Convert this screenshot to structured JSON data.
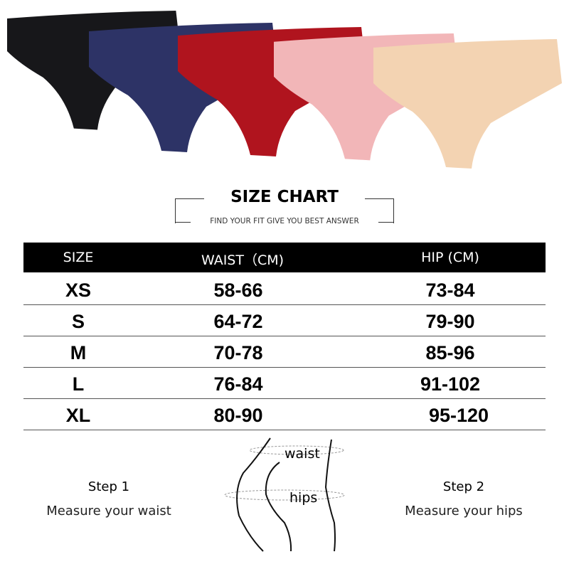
{
  "products": {
    "colors": [
      {
        "name": "black",
        "hex": "#17171a"
      },
      {
        "name": "navy",
        "hex": "#2d3366"
      },
      {
        "name": "red",
        "hex": "#b0141e"
      },
      {
        "name": "pink",
        "hex": "#f2b6b8"
      },
      {
        "name": "beige",
        "hex": "#f3d3b2"
      }
    ]
  },
  "header": {
    "title": "SIZE CHART",
    "subtitle": "FIND YOUR FIT GIVE YOU BEST ANSWER"
  },
  "table": {
    "columns": [
      "SIZE",
      "WAIST（CM)",
      "HIP (CM)"
    ],
    "rows": [
      [
        "XS",
        "58-66",
        "73-84"
      ],
      [
        "S",
        "64-72",
        "79-90"
      ],
      [
        "M",
        "70-78",
        "85-96"
      ],
      [
        "L",
        "76-84",
        "91-102"
      ],
      [
        "XL",
        "80-90",
        "95-120"
      ]
    ]
  },
  "guide": {
    "step1": {
      "title": "Step 1",
      "desc": "Measure your waist"
    },
    "step2": {
      "title": "Step 2",
      "desc": "Measure your hips"
    },
    "figure_labels": {
      "waist": "waist",
      "hips": "hips"
    }
  }
}
